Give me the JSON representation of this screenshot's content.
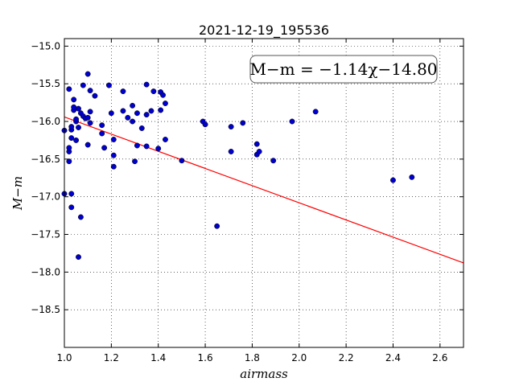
{
  "chart_data": {
    "type": "scatter",
    "title": "2021-12-19_195536",
    "xlabel": "airmass",
    "ylabel": "M−m",
    "xlim": [
      1.0,
      2.7
    ],
    "ylim": [
      -19.0,
      -14.9
    ],
    "y_inverted": true,
    "grid": true,
    "xticks": [
      1.0,
      1.2,
      1.4,
      1.6,
      1.8,
      2.0,
      2.2,
      2.4,
      2.6
    ],
    "xtick_labels": [
      "1.0",
      "1.2",
      "1.4",
      "1.6",
      "1.8",
      "2.0",
      "2.2",
      "2.4",
      "2.6"
    ],
    "yticks": [
      -15.0,
      -15.5,
      -16.0,
      -16.5,
      -17.0,
      -17.5,
      -18.0,
      -18.5
    ],
    "ytick_labels": [
      "−15.0",
      "−15.5",
      "−16.0",
      "−16.5",
      "−17.0",
      "−17.5",
      "−18.0",
      "−18.5"
    ],
    "annotation": "M−m = −1.14χ−14.80",
    "fit_line": {
      "slope": -1.14,
      "intercept": -14.8,
      "color": "#ff0000"
    },
    "points_color": "#0000cc",
    "points": [
      [
        1.0,
        -16.12
      ],
      [
        1.0,
        -16.96
      ],
      [
        1.02,
        -15.57
      ],
      [
        1.02,
        -16.4
      ],
      [
        1.02,
        -16.53
      ],
      [
        1.02,
        -16.35
      ],
      [
        1.03,
        -16.11
      ],
      [
        1.03,
        -16.07
      ],
      [
        1.03,
        -16.22
      ],
      [
        1.03,
        -16.96
      ],
      [
        1.03,
        -17.14
      ],
      [
        1.04,
        -15.71
      ],
      [
        1.04,
        -15.85
      ],
      [
        1.04,
        -15.81
      ],
      [
        1.05,
        -16.0
      ],
      [
        1.05,
        -15.97
      ],
      [
        1.05,
        -16.25
      ],
      [
        1.06,
        -15.83
      ],
      [
        1.06,
        -16.08
      ],
      [
        1.06,
        -17.8
      ],
      [
        1.07,
        -15.89
      ],
      [
        1.07,
        -17.27
      ],
      [
        1.08,
        -15.93
      ],
      [
        1.08,
        -15.52
      ],
      [
        1.09,
        -15.96
      ],
      [
        1.1,
        -15.95
      ],
      [
        1.1,
        -15.37
      ],
      [
        1.1,
        -16.31
      ],
      [
        1.11,
        -15.87
      ],
      [
        1.11,
        -15.59
      ],
      [
        1.11,
        -16.02
      ],
      [
        1.13,
        -15.66
      ],
      [
        1.16,
        -16.16
      ],
      [
        1.16,
        -16.05
      ],
      [
        1.17,
        -16.35
      ],
      [
        1.19,
        -15.52
      ],
      [
        1.2,
        -15.89
      ],
      [
        1.21,
        -16.24
      ],
      [
        1.21,
        -16.45
      ],
      [
        1.21,
        -16.6
      ],
      [
        1.25,
        -15.86
      ],
      [
        1.25,
        -15.6
      ],
      [
        1.27,
        -15.95
      ],
      [
        1.29,
        -16.0
      ],
      [
        1.29,
        -15.79
      ],
      [
        1.3,
        -16.53
      ],
      [
        1.31,
        -16.32
      ],
      [
        1.31,
        -15.89
      ],
      [
        1.33,
        -16.09
      ],
      [
        1.35,
        -16.33
      ],
      [
        1.35,
        -15.91
      ],
      [
        1.35,
        -15.51
      ],
      [
        1.37,
        -15.86
      ],
      [
        1.38,
        -15.6
      ],
      [
        1.4,
        -16.36
      ],
      [
        1.41,
        -15.61
      ],
      [
        1.41,
        -15.85
      ],
      [
        1.42,
        -15.65
      ],
      [
        1.43,
        -16.24
      ],
      [
        1.43,
        -15.76
      ],
      [
        1.5,
        -16.52
      ],
      [
        1.59,
        -16.0
      ],
      [
        1.6,
        -16.04
      ],
      [
        1.65,
        -17.39
      ],
      [
        1.71,
        -16.07
      ],
      [
        1.71,
        -16.4
      ],
      [
        1.76,
        -16.02
      ],
      [
        1.82,
        -16.44
      ],
      [
        1.82,
        -16.3
      ],
      [
        1.83,
        -16.4
      ],
      [
        1.89,
        -16.52
      ],
      [
        1.97,
        -16.0
      ],
      [
        2.07,
        -15.87
      ],
      [
        2.4,
        -16.78
      ],
      [
        2.48,
        -16.74
      ]
    ]
  }
}
